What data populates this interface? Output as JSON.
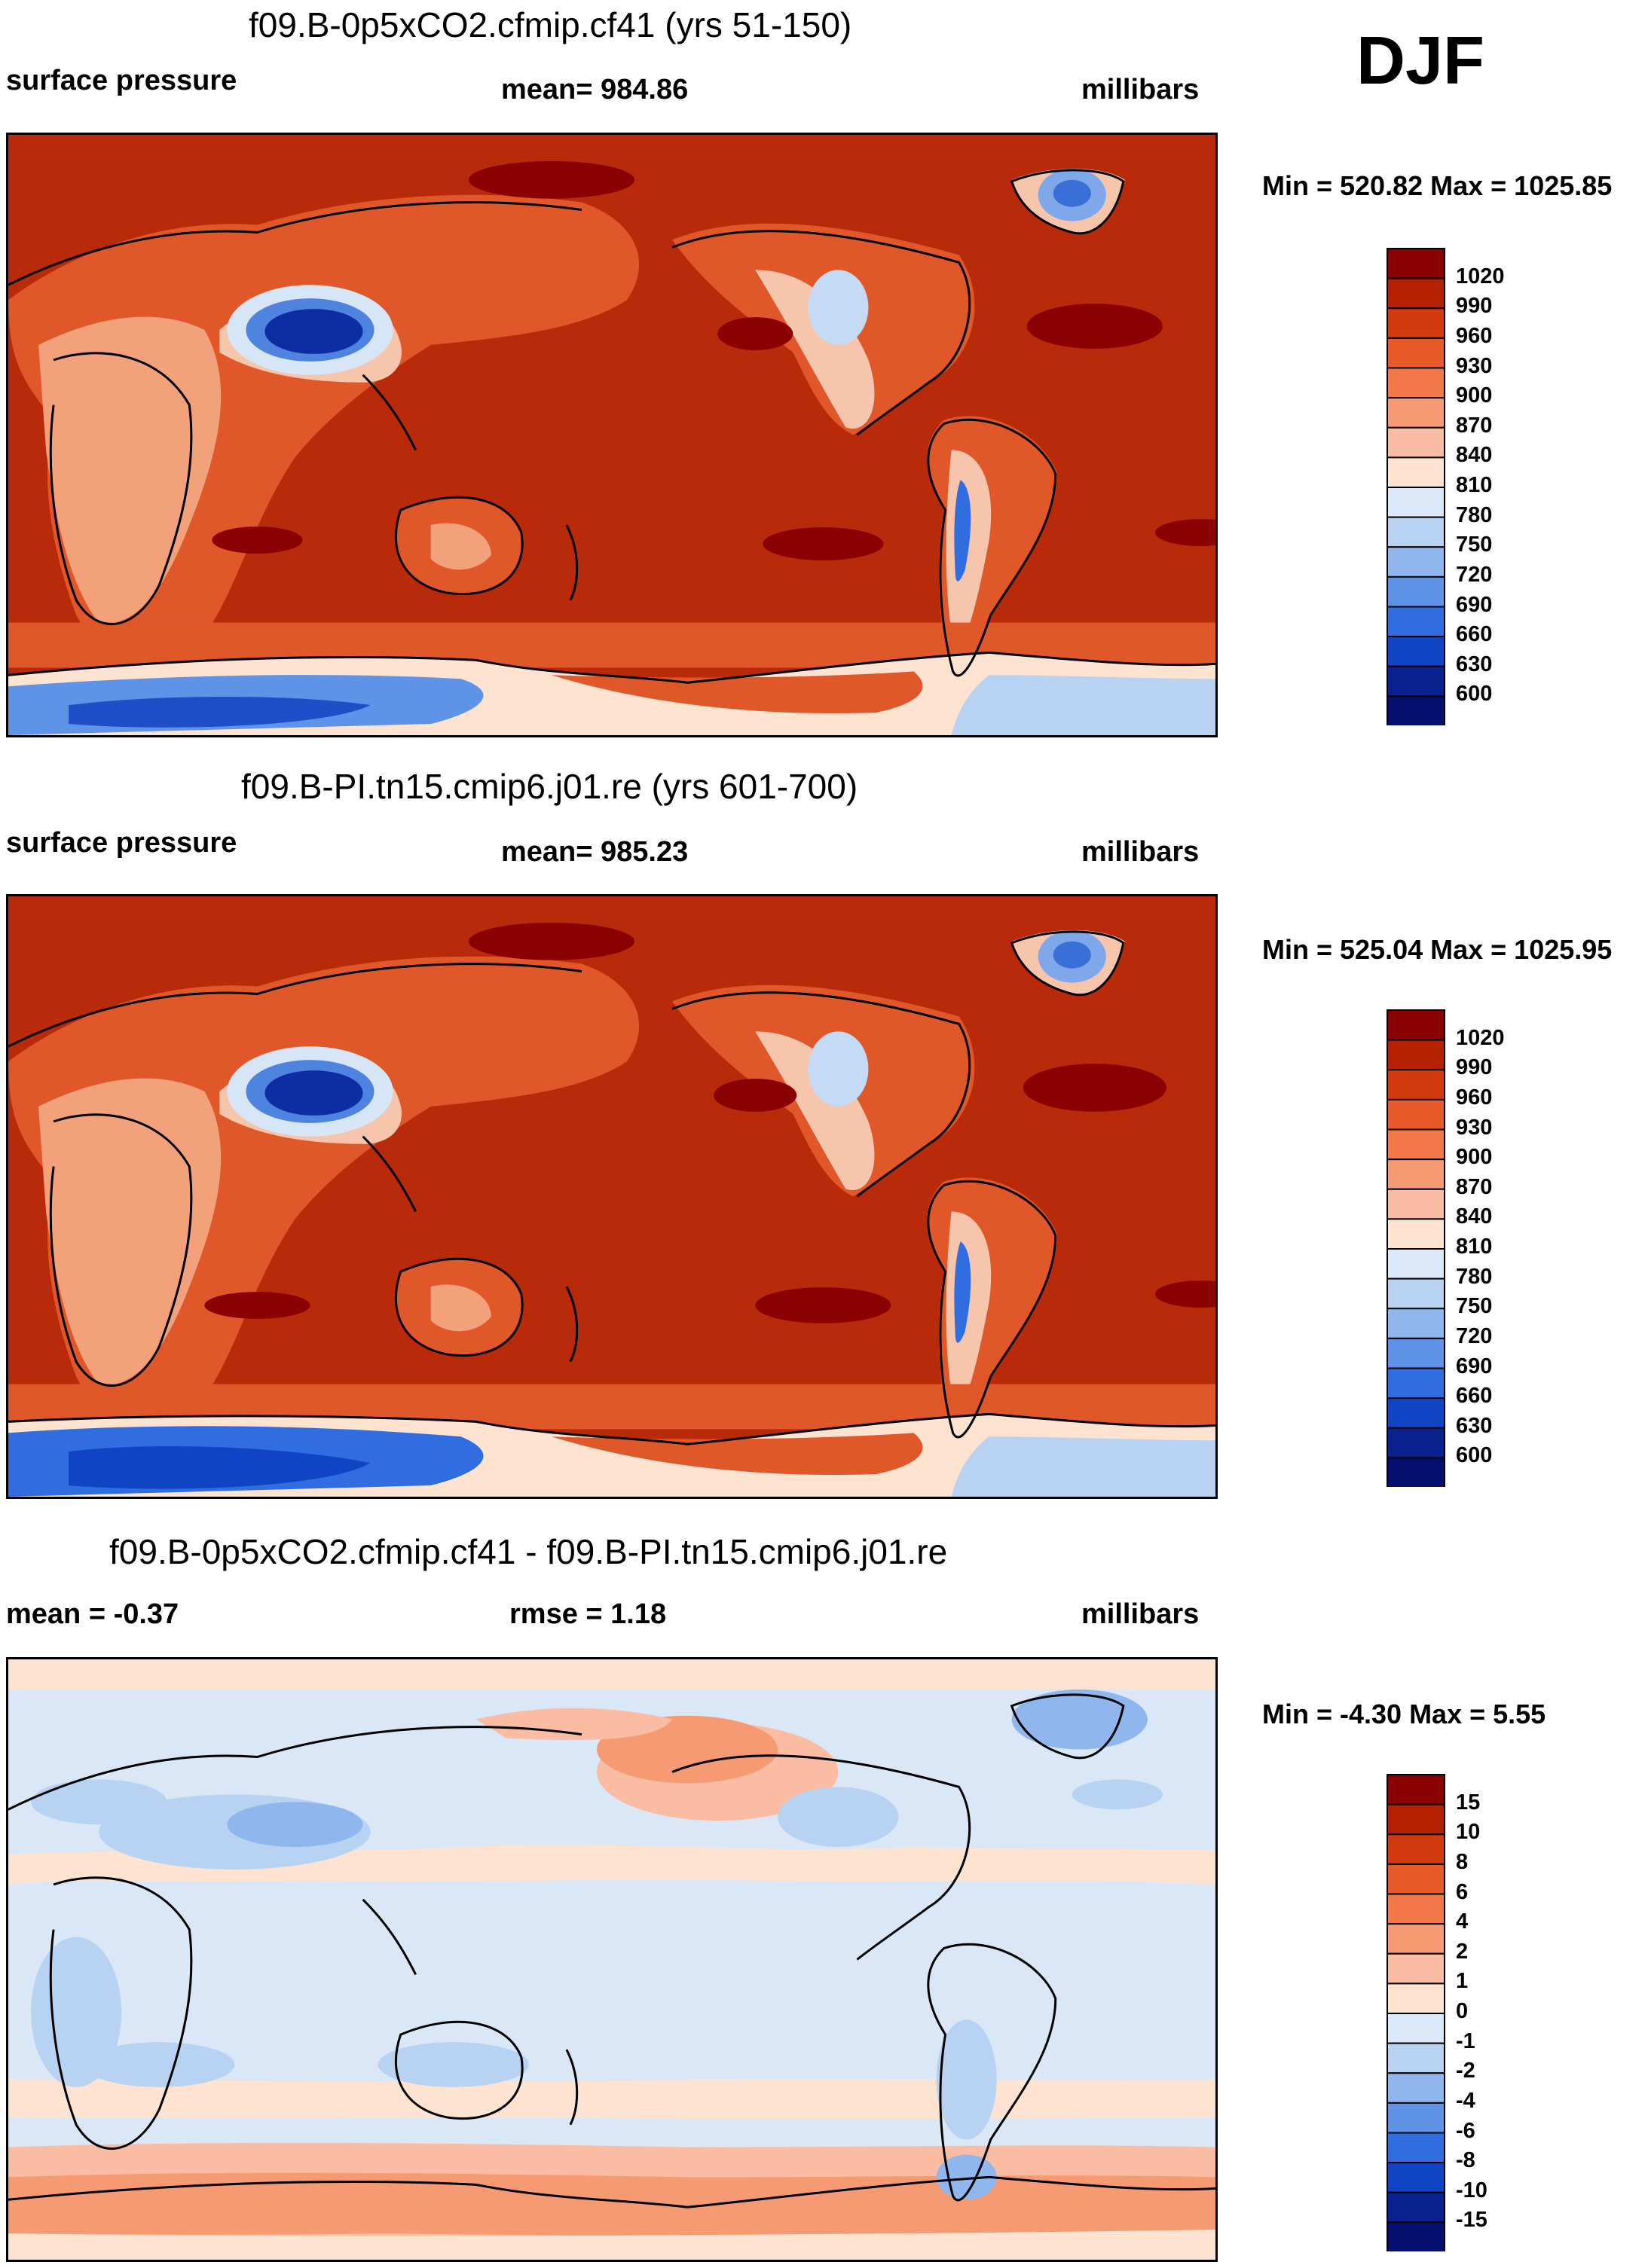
{
  "season": "DJF",
  "panels": [
    {
      "title": "f09.B-0p5xCO2.cfmip.cf41 (yrs 51-150)",
      "left_label": "surface pressure",
      "center_label": "mean= 984.86",
      "right_label": "millibars",
      "minmax": "Min = 520.82 Max = 1025.85"
    },
    {
      "title": "f09.B-PI.tn15.cmip6.j01.re (yrs 601-700)",
      "left_label": "surface pressure",
      "center_label": "mean= 985.23",
      "right_label": "millibars",
      "minmax": "Min = 525.04 Max = 1025.95"
    },
    {
      "title": "f09.B-0p5xCO2.cfmip.cf41 - f09.B-PI.tn15.cmip6.j01.re",
      "left_label": "mean =  -0.37",
      "center_label": "rmse =   1.18",
      "right_label": "millibars",
      "minmax": "Min =  -4.30 Max =   5.55"
    }
  ],
  "chart_data": [
    {
      "type": "heatmap",
      "title": "f09.B-0p5xCO2.cfmip.cf41 (yrs 51-150)",
      "variable": "surface pressure",
      "units": "millibars",
      "mean": 984.86,
      "min": 520.82,
      "max": 1025.85,
      "colorbar_levels": [
        "1020",
        "990",
        "960",
        "930",
        "900",
        "870",
        "840",
        "810",
        "780",
        "750",
        "720",
        "690",
        "660",
        "630",
        "600"
      ],
      "colorbar_colors": [
        "#8b0000",
        "#b52100",
        "#d23a10",
        "#e85a2a",
        "#f2784a",
        "#f59a72",
        "#fabca2",
        "#fde3d0",
        "#dbe9f8",
        "#b8d2f2",
        "#8fb7ee",
        "#5f93e8",
        "#2f6de0",
        "#0f45c4",
        "#0a2290",
        "#050f6e"
      ]
    },
    {
      "type": "heatmap",
      "title": "f09.B-PI.tn15.cmip6.j01.re (yrs 601-700)",
      "variable": "surface pressure",
      "units": "millibars",
      "mean": 985.23,
      "min": 525.04,
      "max": 1025.95,
      "colorbar_levels": [
        "1020",
        "990",
        "960",
        "930",
        "900",
        "870",
        "840",
        "810",
        "780",
        "750",
        "720",
        "690",
        "660",
        "630",
        "600"
      ],
      "colorbar_colors": [
        "#8b0000",
        "#b52100",
        "#d23a10",
        "#e85a2a",
        "#f2784a",
        "#f59a72",
        "#fabca2",
        "#fde3d0",
        "#dbe9f8",
        "#b8d2f2",
        "#8fb7ee",
        "#5f93e8",
        "#2f6de0",
        "#0f45c4",
        "#0a2290",
        "#050f6e"
      ]
    },
    {
      "type": "heatmap",
      "title": "f09.B-0p5xCO2.cfmip.cf41 - f09.B-PI.tn15.cmip6.j01.re",
      "variable": "surface pressure difference",
      "units": "millibars",
      "mean": -0.37,
      "rmse": 1.18,
      "min": -4.3,
      "max": 5.55,
      "colorbar_levels": [
        "15",
        "10",
        "8",
        "6",
        "4",
        "2",
        "1",
        "0",
        "-1",
        "-2",
        "-4",
        "-6",
        "-8",
        "-10",
        "-15"
      ],
      "colorbar_colors": [
        "#8b0000",
        "#b52100",
        "#d23a10",
        "#e85a2a",
        "#f2784a",
        "#f59a72",
        "#fabca2",
        "#fde3d0",
        "#dbe9f8",
        "#b8d2f2",
        "#8fb7ee",
        "#5f93e8",
        "#2f6de0",
        "#0f45c4",
        "#0a2290",
        "#050f6e"
      ]
    }
  ],
  "colors": {
    "land_high": "#b82a0a",
    "ocean_base": "#b82a0a",
    "diff_base": "#d9e7f7",
    "coast": "#000000"
  }
}
